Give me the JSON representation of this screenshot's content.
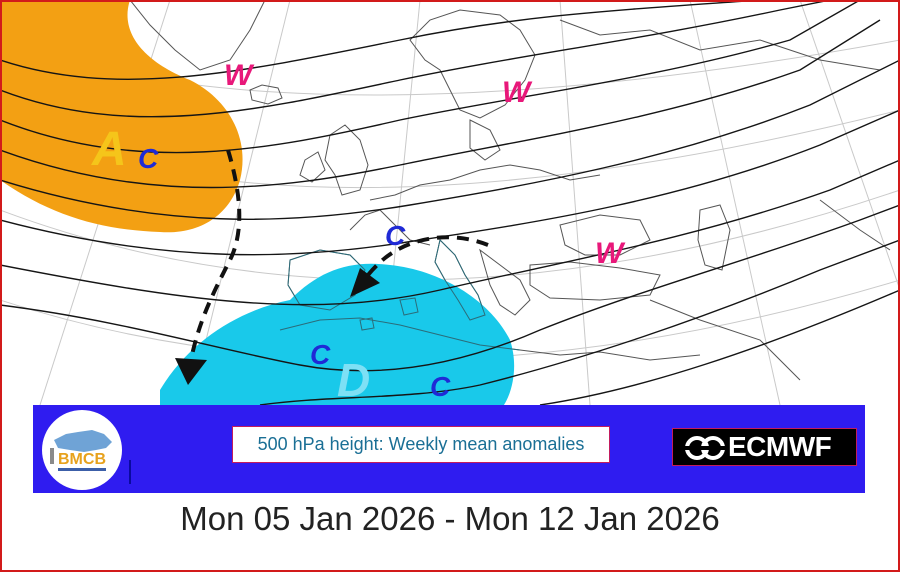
{
  "map": {
    "labels": [
      {
        "id": "anticyclone-label",
        "text": "A",
        "color": "#f5c51a"
      },
      {
        "id": "depression-label",
        "text": "D",
        "color": "#7ee0f5"
      },
      {
        "id": "cold-label-1",
        "text": "C",
        "color": "#1f2ad6"
      },
      {
        "id": "cold-label-2",
        "text": "C",
        "color": "#1f2ad6"
      },
      {
        "id": "cold-label-3",
        "text": "C",
        "color": "#1f2ad6"
      },
      {
        "id": "cold-label-4",
        "text": "C",
        "color": "#1f2ad6"
      },
      {
        "id": "warm-label-1",
        "text": "W",
        "color": "#e8187a"
      },
      {
        "id": "warm-label-2",
        "text": "W",
        "color": "#e8187a"
      },
      {
        "id": "warm-label-3",
        "text": "W",
        "color": "#e8187a"
      }
    ],
    "positive_anomaly_color": "#f3a013",
    "negative_anomaly_color": "#19c9ea",
    "arrow_color": "#111111"
  },
  "legend": {
    "title": "500 hPa height: Weekly mean anomalies",
    "bmcb_logo_text": "BMCB",
    "ecmwf_logo_text": "ECMWF",
    "bar_color": "#2f1cf0"
  },
  "date_range": "Mon 05 Jan 2026 - Mon 12 Jan 2026"
}
